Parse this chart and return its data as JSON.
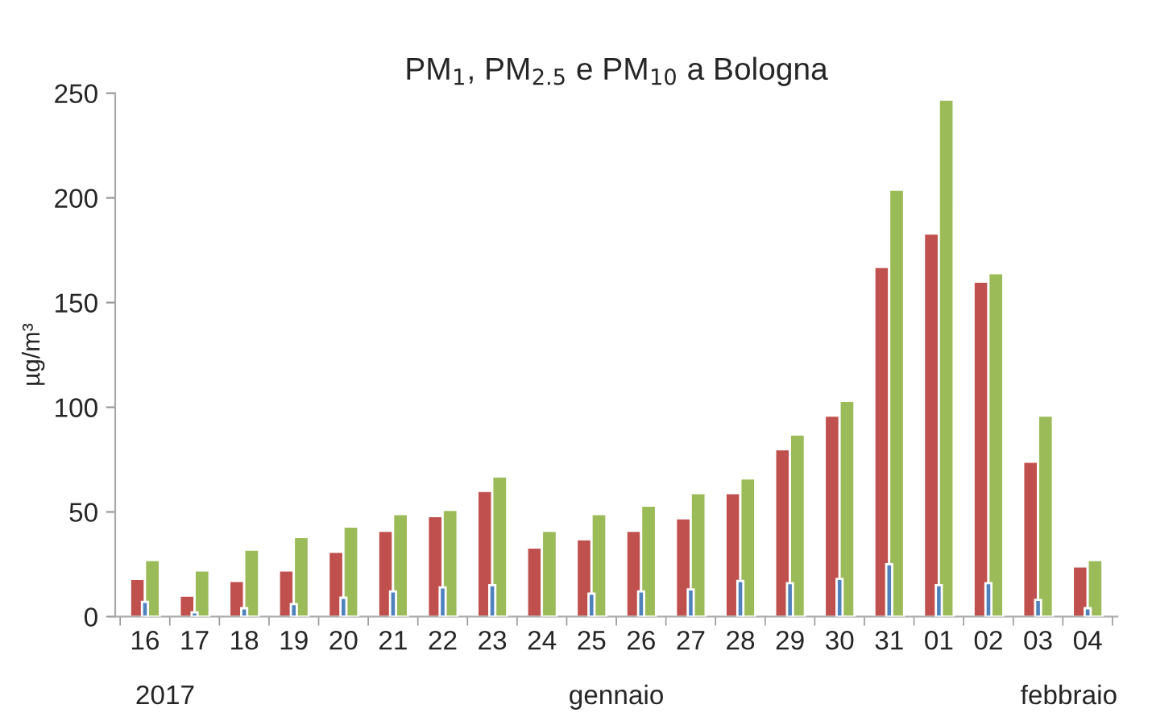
{
  "chart_data": {
    "type": "bar",
    "title": "PM$_{1}$, PM$_{2.5}$ e PM$_{10}$ a Bologna",
    "ylabel": "µg/m³",
    "categories": [
      "16",
      "17",
      "18",
      "19",
      "20",
      "21",
      "22",
      "23",
      "24",
      "25",
      "26",
      "27",
      "28",
      "29",
      "30",
      "31",
      "01",
      "02",
      "03",
      "04"
    ],
    "series": [
      {
        "color": "#c0504d",
        "values": [
          18,
          10,
          17,
          22,
          31,
          41,
          48,
          60,
          33,
          37,
          41,
          47,
          59,
          80,
          96,
          167,
          183,
          160,
          74,
          24
        ]
      },
      {
        "color": "#9bbb59",
        "values": [
          27,
          22,
          32,
          38,
          43,
          49,
          51,
          67,
          41,
          49,
          53,
          59,
          66,
          87,
          103,
          204,
          247,
          164,
          96,
          27
        ]
      },
      {
        "color": "#4f81bd",
        "values": [
          7,
          2,
          4,
          6,
          9,
          12,
          14,
          15,
          null,
          11,
          12,
          13,
          17,
          16,
          18,
          25,
          15,
          16,
          8,
          4
        ]
      }
    ],
    "annotations": [
      "2017",
      "gennaio",
      "febbraio"
    ],
    "ylim": [
      0,
      250
    ],
    "yticks": [
      0,
      50,
      100,
      150,
      200,
      250
    ],
    "grid": false,
    "legend": false
  }
}
